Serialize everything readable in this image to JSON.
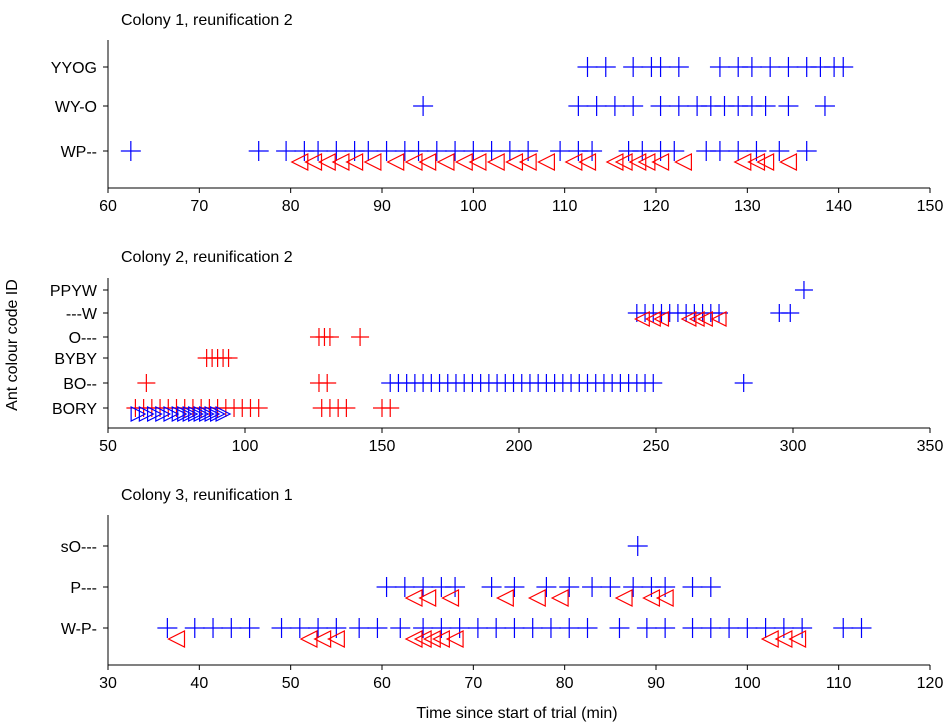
{
  "figure": {
    "xlabel": "Time since start of trial (min)",
    "ylabel": "Ant colour code ID"
  },
  "colors": {
    "blue": "#0000ff",
    "red": "#ff0000"
  },
  "chart_data": [
    {
      "type": "scatter",
      "title": "Colony 1, reunification 2",
      "xlim": [
        60,
        150
      ],
      "xticks": [
        "60",
        "70",
        "80",
        "90",
        "100",
        "110",
        "120",
        "130",
        "140",
        "150"
      ],
      "categories": [
        "YYOG",
        "WY-O",
        "WP--"
      ],
      "grid": false,
      "series": [
        {
          "marker": "plus",
          "color": "#0000ff",
          "row": "YYOG",
          "x": [
            112.5,
            114.5,
            117.5,
            119.5,
            120.5,
            122.5,
            127,
            129,
            130.5,
            132.5,
            134.5,
            136.5,
            138,
            139.5,
            140.5
          ]
        },
        {
          "marker": "plus",
          "color": "#0000ff",
          "row": "WY-O",
          "x": [
            94.5,
            111.5,
            113.5,
            115.5,
            117.5,
            120.5,
            122.5,
            124.5,
            126,
            127.5,
            129,
            130.5,
            132,
            134.5,
            138.5
          ]
        },
        {
          "marker": "plus",
          "color": "#0000ff",
          "row": "WP--",
          "x": [
            62.5,
            76.5,
            79.5,
            81.5,
            83,
            85,
            87,
            88.5,
            90.5,
            92.5,
            94,
            96,
            98,
            100,
            102,
            104,
            106,
            109.5,
            111.5,
            113,
            117,
            118.5,
            120.5,
            122,
            125.5,
            127,
            129,
            131,
            133.5,
            136.5
          ]
        },
        {
          "marker": "triangle-left",
          "color": "#ff0000",
          "row": "WP--",
          "x": [
            81,
            82.5,
            84,
            85.5,
            87,
            89,
            91.5,
            93.5,
            95,
            97,
            99,
            100.5,
            102.5,
            104.5,
            106,
            108,
            111,
            112.5,
            115.5,
            116.5,
            118,
            119,
            120.5,
            123,
            129.5,
            131,
            132,
            134.5
          ]
        }
      ]
    },
    {
      "type": "scatter",
      "title": "Colony 2, reunification 2",
      "xlim": [
        50,
        350
      ],
      "xticks": [
        "50",
        "100",
        "150",
        "200",
        "250",
        "300",
        "350"
      ],
      "categories": [
        "PPYW",
        "---W",
        "O---",
        "BYBY",
        "BO--",
        "BORY"
      ],
      "grid": false,
      "series": [
        {
          "marker": "plus",
          "color": "#0000ff",
          "row": "PPYW",
          "x": [
            304
          ]
        },
        {
          "marker": "plus",
          "color": "#0000ff",
          "row": "---W",
          "x": [
            243,
            246,
            249,
            252,
            255,
            258,
            261,
            264,
            267,
            270,
            273,
            295,
            299
          ]
        },
        {
          "marker": "triangle-left",
          "color": "#ff0000",
          "row": "---W",
          "x": [
            245,
            249,
            252,
            262,
            265,
            268,
            273
          ]
        },
        {
          "marker": "plus",
          "color": "#ff0000",
          "row": "O---",
          "x": [
            127,
            129,
            131,
            142
          ]
        },
        {
          "marker": "plus",
          "color": "#ff0000",
          "row": "BYBY",
          "x": [
            86,
            88,
            90,
            92,
            94
          ]
        },
        {
          "marker": "plus",
          "color": "#ff0000",
          "row": "BO--",
          "x": [
            64,
            127,
            130
          ]
        },
        {
          "marker": "plus",
          "color": "#0000ff",
          "row": "BO--",
          "x": [
            153,
            156,
            159,
            162,
            165,
            168,
            171,
            174,
            177,
            180,
            183,
            186,
            189,
            192,
            195,
            198,
            201,
            204,
            207,
            210,
            213,
            216,
            219,
            222,
            225,
            228,
            231,
            234,
            237,
            240,
            243,
            246,
            249,
            282
          ]
        },
        {
          "marker": "plus",
          "color": "#ff0000",
          "row": "BORY",
          "x": [
            60,
            63,
            66,
            69,
            72,
            75,
            78,
            81,
            84,
            87,
            90,
            93,
            96,
            99,
            102,
            105,
            128,
            131,
            134,
            137,
            150,
            153
          ]
        },
        {
          "marker": "triangle-right",
          "color": "#0000ff",
          "row": "BORY",
          "x": [
            61,
            64,
            67,
            70,
            73,
            76,
            78,
            80,
            82,
            84,
            86,
            88,
            90,
            92
          ]
        }
      ]
    },
    {
      "type": "scatter",
      "title": "Colony 3, reunification 1",
      "xlim": [
        30,
        120
      ],
      "xticks": [
        "30",
        "40",
        "50",
        "60",
        "70",
        "80",
        "90",
        "100",
        "110",
        "120"
      ],
      "categories": [
        "sO---",
        "P---",
        "W-P-"
      ],
      "grid": false,
      "series": [
        {
          "marker": "plus",
          "color": "#0000ff",
          "row": "sO---",
          "x": [
            88
          ]
        },
        {
          "marker": "plus",
          "color": "#0000ff",
          "row": "P---",
          "x": [
            60.5,
            62.5,
            64.5,
            66.5,
            68,
            72,
            74.5,
            78,
            80.5,
            83,
            85,
            87.5,
            89.5,
            91,
            94,
            96
          ]
        },
        {
          "marker": "triangle-left",
          "color": "#ff0000",
          "row": "P---",
          "x": [
            63.5,
            65,
            67.5,
            73.5,
            77,
            79.5,
            86.5,
            89.5,
            91
          ]
        },
        {
          "marker": "plus",
          "color": "#0000ff",
          "row": "W-P-",
          "x": [
            36.5,
            39.5,
            41.5,
            43.5,
            45.5,
            49,
            51,
            53,
            55,
            57.5,
            59.5,
            62,
            64.5,
            66.5,
            68.5,
            70.5,
            72.5,
            74.5,
            76.5,
            78.5,
            80.5,
            82.5,
            86,
            89,
            91,
            94,
            96,
            98,
            100,
            102,
            104,
            106,
            110.5,
            112.5
          ]
        },
        {
          "marker": "triangle-left",
          "color": "#ff0000",
          "row": "W-P-",
          "x": [
            37.5,
            52,
            53.5,
            55,
            63.5,
            64.5,
            65.5,
            66.5,
            68,
            102.5,
            104,
            105.5
          ]
        }
      ]
    }
  ]
}
